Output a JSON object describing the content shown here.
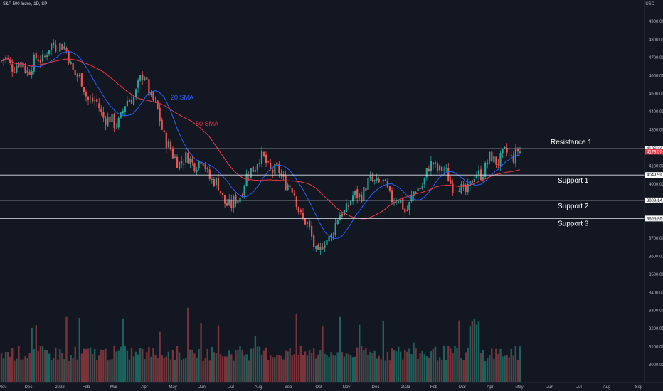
{
  "header": {
    "title": "S&P 500 Index, 1D, SP",
    "currency": "USD"
  },
  "price_tag": "4178.57",
  "chart_data": {
    "type": "candlestick",
    "title": "S&P 500 Index, 1D, SP",
    "ylim": [
      2950,
      5075
    ],
    "y_ticks": [
      "3000.00",
      "3100.00",
      "3200.00",
      "3300.00",
      "3400.00",
      "3500.00",
      "3600.00",
      "3700.00",
      "3800.00",
      "3900.00",
      "4000.00",
      "4100.00",
      "4200.00",
      "4300.00",
      "4400.00",
      "4500.00",
      "4600.00",
      "4700.00",
      "4800.00",
      "4900.00"
    ],
    "x_ticks": [
      "Nov",
      "Dec",
      "2022",
      "Feb",
      "Mar",
      "Apr",
      "May",
      "Jun",
      "Jul",
      "Aug",
      "Sep",
      "Oct",
      "Nov",
      "Dec",
      "2023",
      "Feb",
      "Mar",
      "Apr",
      "May",
      "Jun",
      "Jul",
      "Aug",
      "Sep"
    ],
    "levels": [
      {
        "name": "Resistance 1",
        "value": 4195.44,
        "tag": "4195.44"
      },
      {
        "name": "Support 1",
        "value": 4049.59,
        "tag": "4049.59"
      },
      {
        "name": "Support 2",
        "value": 3909.14,
        "tag": "3909.14"
      },
      {
        "name": "Support 3",
        "value": 3808.86,
        "tag": "3808.86"
      }
    ],
    "indicators": [
      {
        "name": "20 SMA",
        "color": "#2962ff"
      },
      {
        "name": "50 SMA",
        "color": "#f23645"
      }
    ],
    "close_anchors": [
      [
        "Nov",
        4680
      ],
      [
        "Dec",
        4640
      ],
      [
        "2022",
        4790
      ],
      [
        "Feb",
        4500
      ],
      [
        "Mar",
        4320
      ],
      [
        "Apr",
        4600
      ],
      [
        "May",
        4140
      ],
      [
        "Jun",
        4120
      ],
      [
        "Jul",
        3860
      ],
      [
        "Aug",
        4150
      ],
      [
        "Sep",
        4010
      ],
      [
        "Oct",
        3610
      ],
      [
        "Nov",
        3880
      ],
      [
        "Dec",
        4030
      ],
      [
        "2023",
        3860
      ],
      [
        "Feb",
        4120
      ],
      [
        "Mar",
        3950
      ],
      [
        "Apr",
        4130
      ],
      [
        "May",
        4178.57
      ]
    ],
    "colors": {
      "up": "#26a69a",
      "down": "#ef5350"
    }
  }
}
